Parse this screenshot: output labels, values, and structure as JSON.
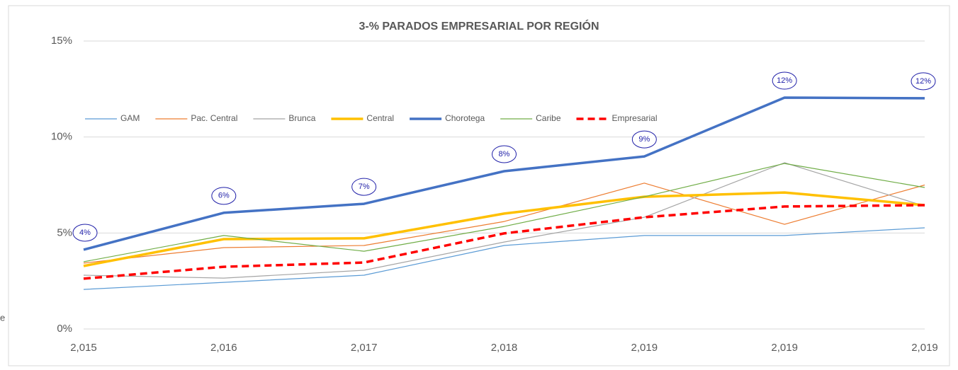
{
  "chart_data": {
    "type": "line",
    "title": "3-% PARADOS EMPRESARIAL  POR REGIÓN",
    "side_text": "e",
    "categories": [
      "2,015",
      "2,016",
      "2,017",
      "2,018",
      "2,019",
      "2,019",
      "2,019"
    ],
    "ylim": [
      0,
      15
    ],
    "yticks": [
      {
        "value": 0,
        "label": "0%"
      },
      {
        "value": 5,
        "label": "5%"
      },
      {
        "value": 10,
        "label": "10%"
      },
      {
        "value": 15,
        "label": "15%"
      }
    ],
    "grid": true,
    "legend": "top",
    "series": [
      {
        "name": "GAM",
        "color": "#5b9bd5",
        "width": 1.2,
        "values": [
          2.06,
          2.43,
          2.8,
          4.35,
          4.87,
          4.87,
          5.27
        ]
      },
      {
        "name": "Pac. Central",
        "color": "#ed7d31",
        "width": 1.2,
        "values": [
          3.43,
          4.24,
          4.35,
          5.6,
          7.6,
          5.45,
          7.5
        ]
      },
      {
        "name": "Brunca",
        "color": "#a5a5a5",
        "width": 1.2,
        "values": [
          2.8,
          2.65,
          3.06,
          4.53,
          5.82,
          8.66,
          6.4
        ]
      },
      {
        "name": "Central",
        "color": "#ffc000",
        "width": 3.5,
        "values": [
          3.28,
          4.68,
          4.72,
          6.01,
          6.89,
          7.11,
          6.45
        ]
      },
      {
        "name": "Chorotega",
        "color": "#4472c4",
        "width": 3.5,
        "values": [
          4.13,
          6.05,
          6.52,
          8.22,
          8.99,
          12.05,
          12.02
        ],
        "value_labels": [
          "4%",
          "6%",
          "7%",
          "8%",
          "9%",
          "12%",
          "12%"
        ]
      },
      {
        "name": "Caribe",
        "color": "#70ad47",
        "width": 1.2,
        "values": [
          3.5,
          4.87,
          4.05,
          5.34,
          6.89,
          8.62,
          7.37
        ]
      },
      {
        "name": "Empresarial",
        "color": "#ff0000",
        "width": 3.5,
        "dashed": true,
        "values": [
          2.62,
          3.24,
          3.46,
          4.98,
          5.82,
          6.38,
          6.45
        ]
      }
    ]
  }
}
